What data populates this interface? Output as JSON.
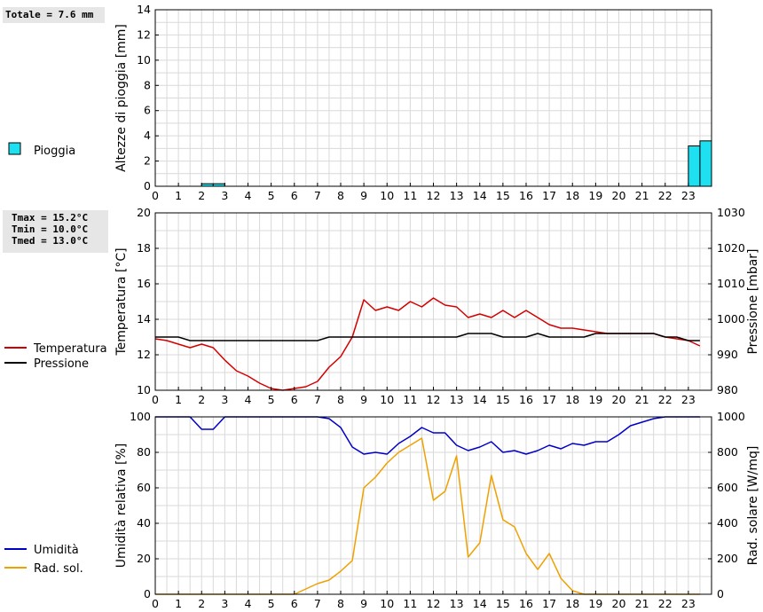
{
  "stats": {
    "rain_total": "Totale = 7.6 mm",
    "temp": [
      "Tmax = 15.2°C",
      "Tmin = 10.0°C",
      "Tmed = 13.0°C"
    ]
  },
  "chart_data": [
    {
      "type": "bar",
      "ylabel": "Altezze di pioggia [mm]",
      "ylim": [
        0,
        14
      ],
      "yticks": [
        0,
        2,
        4,
        6,
        8,
        10,
        12,
        14
      ],
      "xlim": [
        0,
        24
      ],
      "xticks": [
        0,
        1,
        2,
        3,
        4,
        5,
        6,
        7,
        8,
        9,
        10,
        11,
        12,
        13,
        14,
        15,
        16,
        17,
        18,
        19,
        20,
        21,
        22,
        23
      ],
      "grid": true,
      "series": [
        {
          "name": "Pioggia",
          "color": "#1fe0f0",
          "bars": [
            {
              "x": 2.0,
              "v": 0.2
            },
            {
              "x": 2.5,
              "v": 0.2
            },
            {
              "x": 23.0,
              "v": 3.2
            },
            {
              "x": 23.5,
              "v": 3.6
            }
          ]
        }
      ]
    },
    {
      "type": "line",
      "ylabel": "Temperatura [°C]",
      "ylabel_right": "Pressione [mbar]",
      "ylim": [
        10,
        20
      ],
      "yticks": [
        10,
        12,
        14,
        16,
        18,
        20
      ],
      "ylim_right": [
        980,
        1030
      ],
      "yticks_right": [
        980,
        990,
        1000,
        1010,
        1020,
        1030
      ],
      "xlim": [
        0,
        24
      ],
      "xticks": [
        0,
        1,
        2,
        3,
        4,
        5,
        6,
        7,
        8,
        9,
        10,
        11,
        12,
        13,
        14,
        15,
        16,
        17,
        18,
        19,
        20,
        21,
        22,
        23
      ],
      "grid": true,
      "series": [
        {
          "name": "Temperatura",
          "color": "#d40000",
          "axis": "left",
          "x": [
            0,
            0.5,
            1,
            1.5,
            2,
            2.5,
            3,
            3.5,
            4,
            4.5,
            5,
            5.5,
            6,
            6.5,
            7,
            7.5,
            8,
            8.5,
            9,
            9.5,
            10,
            10.5,
            11,
            11.5,
            12,
            12.5,
            13,
            13.5,
            14,
            14.5,
            15,
            15.5,
            16,
            16.5,
            17,
            17.5,
            18,
            18.5,
            19,
            19.5,
            20,
            20.5,
            21,
            21.5,
            22,
            22.5,
            23,
            23.5
          ],
          "y": [
            12.9,
            12.8,
            12.6,
            12.4,
            12.6,
            12.4,
            11.7,
            11.1,
            10.8,
            10.4,
            10.1,
            10.0,
            10.1,
            10.2,
            10.5,
            11.3,
            11.9,
            13.0,
            15.1,
            14.5,
            14.7,
            14.5,
            15.0,
            14.7,
            15.2,
            14.8,
            14.7,
            14.1,
            14.3,
            14.1,
            14.5,
            14.1,
            14.5,
            14.1,
            13.7,
            13.5,
            13.5,
            13.4,
            13.3,
            13.2,
            13.2,
            13.2,
            13.2,
            13.2,
            13.0,
            12.9,
            12.8,
            12.5
          ]
        },
        {
          "name": "Pressione",
          "color": "#000000",
          "axis": "right",
          "x": [
            0,
            0.5,
            1,
            1.5,
            2,
            2.5,
            3,
            3.5,
            4,
            4.5,
            5,
            5.5,
            6,
            6.5,
            7,
            7.5,
            8,
            8.5,
            9,
            9.5,
            10,
            10.5,
            11,
            11.5,
            12,
            12.5,
            13,
            13.5,
            14,
            14.5,
            15,
            15.5,
            16,
            16.5,
            17,
            17.5,
            18,
            18.5,
            19,
            19.5,
            20,
            20.5,
            21,
            21.5,
            22,
            22.5,
            23,
            23.5
          ],
          "y": [
            995,
            995,
            995,
            994,
            994,
            994,
            994,
            994,
            994,
            994,
            994,
            994,
            994,
            994,
            994,
            995,
            995,
            995,
            995,
            995,
            995,
            995,
            995,
            995,
            995,
            995,
            995,
            996,
            996,
            996,
            995,
            995,
            995,
            996,
            995,
            995,
            995,
            995,
            996,
            996,
            996,
            996,
            996,
            996,
            995,
            995,
            994,
            994
          ]
        }
      ]
    },
    {
      "type": "line",
      "ylabel": "Umidità relativa [%]",
      "ylabel_right": "Rad. solare [W/mq]",
      "ylim": [
        0,
        100
      ],
      "yticks": [
        0,
        20,
        40,
        60,
        80,
        100
      ],
      "ylim_right": [
        0,
        1000
      ],
      "yticks_right": [
        0,
        200,
        400,
        600,
        800,
        1000
      ],
      "xlim": [
        0,
        24
      ],
      "xticks": [
        0,
        1,
        2,
        3,
        4,
        5,
        6,
        7,
        8,
        9,
        10,
        11,
        12,
        13,
        14,
        15,
        16,
        17,
        18,
        19,
        20,
        21,
        22,
        23
      ],
      "grid": true,
      "series": [
        {
          "name": "Umidità",
          "color": "#0000c8",
          "axis": "left",
          "x": [
            0,
            0.5,
            1,
            1.5,
            2,
            2.5,
            3,
            3.5,
            4,
            4.5,
            5,
            5.5,
            6,
            6.5,
            7,
            7.5,
            8,
            8.5,
            9,
            9.5,
            10,
            10.5,
            11,
            11.5,
            12,
            12.5,
            13,
            13.5,
            14,
            14.5,
            15,
            15.5,
            16,
            16.5,
            17,
            17.5,
            18,
            18.5,
            19,
            19.5,
            20,
            20.5,
            21,
            21.5,
            22,
            22.5,
            23,
            23.5
          ],
          "y": [
            100,
            100,
            100,
            100,
            93,
            93,
            100,
            100,
            100,
            100,
            100,
            100,
            100,
            100,
            100,
            99,
            94,
            83,
            79,
            80,
            79,
            85,
            89,
            94,
            91,
            91,
            84,
            81,
            83,
            86,
            80,
            81,
            79,
            81,
            84,
            82,
            85,
            84,
            86,
            86,
            90,
            95,
            97,
            99,
            100,
            100,
            100,
            100
          ]
        },
        {
          "name": "Rad. sol.",
          "color": "#f0a000",
          "axis": "right",
          "x": [
            0,
            0.5,
            1,
            1.5,
            2,
            2.5,
            3,
            3.5,
            4,
            4.5,
            5,
            5.5,
            6,
            6.5,
            7,
            7.5,
            8,
            8.5,
            9,
            9.5,
            10,
            10.5,
            11,
            11.5,
            12,
            12.5,
            13,
            13.5,
            14,
            14.5,
            15,
            15.5,
            16,
            16.5,
            17,
            17.5,
            18,
            18.5,
            19,
            19.5,
            20,
            20.5,
            21,
            21.5,
            22,
            22.5,
            23,
            23.5
          ],
          "y": [
            0,
            0,
            0,
            0,
            0,
            0,
            0,
            0,
            0,
            0,
            0,
            0,
            0,
            30,
            60,
            80,
            130,
            190,
            600,
            660,
            740,
            800,
            840,
            880,
            530,
            580,
            780,
            210,
            290,
            670,
            420,
            380,
            230,
            140,
            230,
            90,
            20,
            0,
            0,
            0,
            0,
            0,
            0,
            0,
            0,
            0,
            0,
            0
          ]
        }
      ]
    }
  ]
}
